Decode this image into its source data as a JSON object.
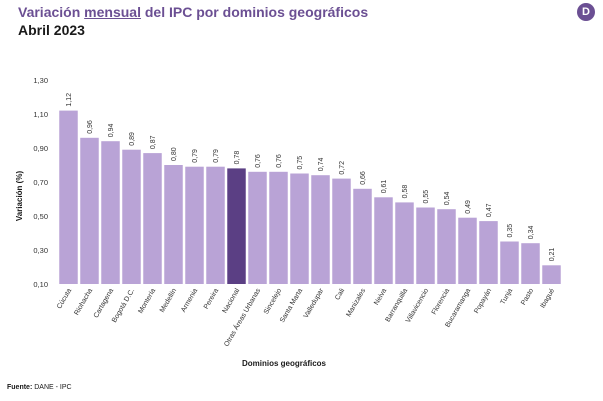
{
  "header": {
    "title_pre": "Variación",
    "title_underlined": "mensual",
    "title_post": "del IPC por dominios geográficos",
    "subtitle": "Abril 2023",
    "logo_letter": "D"
  },
  "footer": {
    "label": "Fuente:",
    "value": "DANE - IPC"
  },
  "colors": {
    "bar": "#b9a3d6",
    "highlight": "#5b3f84",
    "axis_text": "#333333"
  },
  "chart_data": {
    "type": "bar",
    "title": "Variación mensual del IPC por dominios geográficos",
    "xlabel": "Dominios geográficos",
    "ylabel": "Variación (%)",
    "ylim": [
      0.1,
      1.3
    ],
    "yticks": [
      "0,10",
      "0,30",
      "0,50",
      "0,70",
      "0,90",
      "1,10",
      "1,30"
    ],
    "ytick_values": [
      0.1,
      0.3,
      0.5,
      0.7,
      0.9,
      1.1,
      1.3
    ],
    "grid": false,
    "highlight_category": "Nacional",
    "categories": [
      "Cúcuta",
      "Riohacha",
      "Cartagena",
      "Bogotá D.C.",
      "Montería",
      "Medellín",
      "Armenia",
      "Pereira",
      "Nacional",
      "Otras Áreas Urbanas",
      "Sincelejo",
      "Santa Marta",
      "Valledupar",
      "Cali",
      "Manizales",
      "Neiva",
      "Barranquilla",
      "Villavicencio",
      "Florencia",
      "Bucaramanga",
      "Popayán",
      "Tunja",
      "Pasto",
      "Ibagué"
    ],
    "values": [
      1.12,
      0.96,
      0.94,
      0.89,
      0.87,
      0.8,
      0.79,
      0.79,
      0.78,
      0.76,
      0.76,
      0.75,
      0.74,
      0.72,
      0.66,
      0.61,
      0.58,
      0.55,
      0.54,
      0.49,
      0.47,
      0.35,
      0.34,
      0.21
    ],
    "value_labels": [
      "1,12",
      "0,96",
      "0,94",
      "0,89",
      "0,87",
      "0,80",
      "0,79",
      "0,79",
      "0,78",
      "0,76",
      "0,76",
      "0,75",
      "0,74",
      "0,72",
      "0,66",
      "0,61",
      "0,58",
      "0,55",
      "0,54",
      "0,49",
      "0,47",
      "0,35",
      "0,34",
      "0,21"
    ]
  }
}
